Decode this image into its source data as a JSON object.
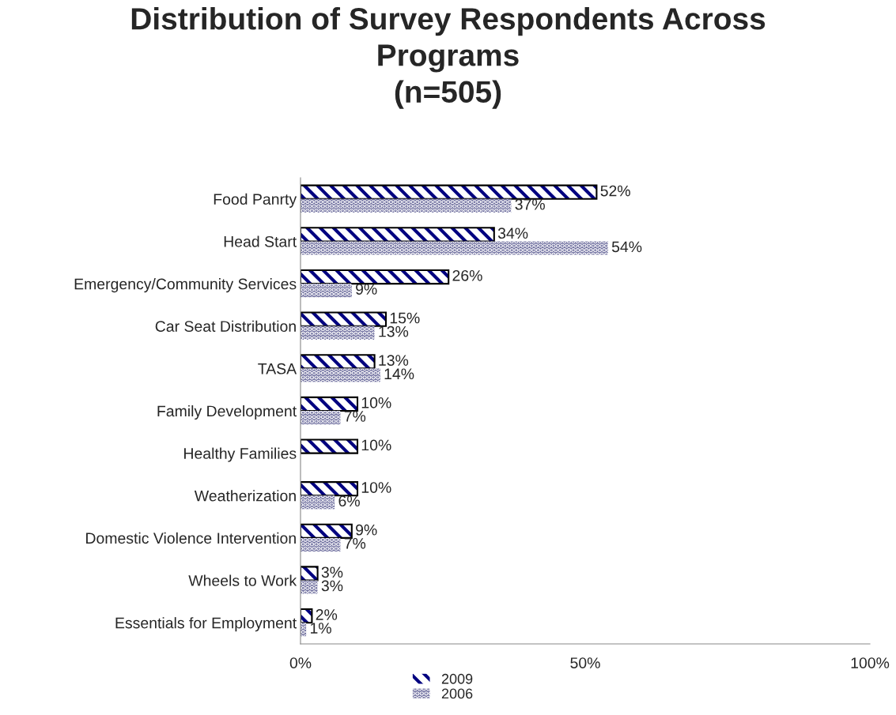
{
  "chart_data": {
    "type": "bar",
    "orientation": "horizontal",
    "title": "Distribution of Survey Respondents Across\nPrograms\n(n=505)",
    "categories": [
      "Food Panrty",
      "Head Start",
      "Emergency/Community Services",
      "Car Seat Distribution",
      "TASA",
      "Family Development",
      "Healthy Families",
      "Weatherization",
      "Domestic Violence Intervention",
      "Wheels to Work",
      "Essentials for Employment"
    ],
    "series": [
      {
        "name": "2009",
        "color": "#000080",
        "values": [
          52,
          34,
          26,
          15,
          13,
          10,
          10,
          10,
          9,
          3,
          2
        ],
        "value_labels": [
          "52%",
          "34%",
          "26%",
          "15%",
          "13%",
          "10%",
          "10%",
          "10%",
          "9%",
          "3%",
          "2%"
        ]
      },
      {
        "name": "2006",
        "color": "#666699",
        "values": [
          37,
          54,
          9,
          13,
          14,
          7,
          null,
          6,
          7,
          3,
          1
        ],
        "value_labels": [
          "37%",
          "54%",
          "9%",
          "13%",
          "14%",
          "7%",
          null,
          "6%",
          "7%",
          "3%",
          "1%"
        ]
      }
    ],
    "xlim": [
      0,
      100
    ],
    "xticks": [
      {
        "value": 0,
        "label": "0%"
      },
      {
        "value": 50,
        "label": "50%"
      },
      {
        "value": 100,
        "label": "100%"
      }
    ],
    "legend": "bottom",
    "grid": false
  }
}
